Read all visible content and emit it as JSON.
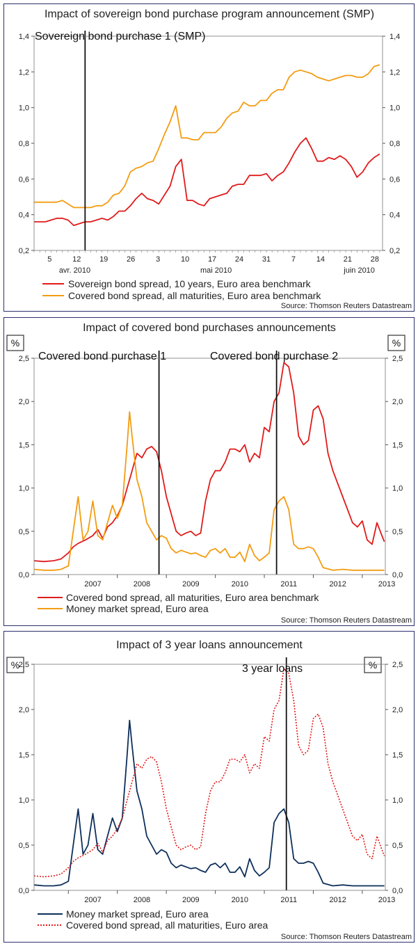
{
  "chart_data": [
    {
      "type": "line",
      "title": "Impact of sovereign bond purchase program announcement (SMP)",
      "unit_label": "",
      "x_tick_labels": [
        "5",
        "12",
        "19",
        "26",
        "3",
        "10",
        "17",
        "24",
        "31",
        "7",
        "14",
        "21",
        "28"
      ],
      "x_month_labels": [
        "avr. 2010",
        "mai 2010",
        "juin 2010"
      ],
      "ylim": [
        0.2,
        1.4
      ],
      "y_ticks": [
        "0,2",
        "0,4",
        "0,6",
        "0,8",
        "1,0",
        "1,2",
        "1,4"
      ],
      "event_line": {
        "x": 9.0,
        "label": "Sovereign bond purchase 1 (SMP)"
      },
      "xlim": [
        0,
        61.5
      ],
      "series": [
        {
          "name": "Sovereign bond spread, 10 years, Euro area benchmark",
          "color": "#e11a1a",
          "style": "solid",
          "x": [
            0,
            1,
            2,
            3,
            4,
            5,
            6,
            7,
            8,
            9,
            10,
            11,
            12,
            13,
            14,
            15,
            16,
            17,
            18,
            19,
            20,
            21,
            22,
            23,
            24,
            25,
            26,
            27,
            28,
            29,
            30,
            31,
            32,
            33,
            34,
            35,
            36,
            37,
            38,
            39,
            40,
            41,
            42,
            43,
            44,
            45,
            46,
            47,
            48,
            49,
            50,
            51,
            52,
            53,
            54,
            55,
            56,
            57,
            58,
            59,
            60,
            61
          ],
          "values": [
            0.36,
            0.36,
            0.36,
            0.37,
            0.38,
            0.38,
            0.37,
            0.34,
            0.35,
            0.36,
            0.36,
            0.37,
            0.38,
            0.37,
            0.39,
            0.42,
            0.42,
            0.45,
            0.49,
            0.52,
            0.49,
            0.48,
            0.46,
            0.51,
            0.56,
            0.67,
            0.71,
            0.48,
            0.48,
            0.46,
            0.45,
            0.49,
            0.5,
            0.51,
            0.52,
            0.56,
            0.57,
            0.57,
            0.62,
            0.62,
            0.62,
            0.63,
            0.59,
            0.62,
            0.64,
            0.69,
            0.75,
            0.8,
            0.83,
            0.77,
            0.7,
            0.7,
            0.72,
            0.71,
            0.73,
            0.71,
            0.67,
            0.61,
            0.64,
            0.69,
            0.72,
            0.74
          ]
        },
        {
          "name": "Covered bond spread, all maturities, Euro area benchmark",
          "color": "#f39c12",
          "style": "solid",
          "x": [
            0,
            1,
            2,
            3,
            4,
            5,
            6,
            7,
            8,
            9,
            10,
            11,
            12,
            13,
            14,
            15,
            16,
            17,
            18,
            19,
            20,
            21,
            22,
            23,
            24,
            25,
            26,
            27,
            28,
            29,
            30,
            31,
            32,
            33,
            34,
            35,
            36,
            37,
            38,
            39,
            40,
            41,
            42,
            43,
            44,
            45,
            46,
            47,
            48,
            49,
            50,
            51,
            52,
            53,
            54,
            55,
            56,
            57,
            58,
            59,
            60,
            61
          ],
          "values": [
            0.47,
            0.47,
            0.47,
            0.47,
            0.47,
            0.48,
            0.46,
            0.44,
            0.44,
            0.44,
            0.44,
            0.45,
            0.45,
            0.47,
            0.51,
            0.52,
            0.56,
            0.64,
            0.66,
            0.67,
            0.69,
            0.7,
            0.77,
            0.85,
            0.92,
            1.01,
            0.83,
            0.83,
            0.82,
            0.82,
            0.86,
            0.86,
            0.86,
            0.89,
            0.94,
            0.97,
            0.98,
            1.03,
            1.01,
            1.01,
            1.04,
            1.04,
            1.08,
            1.1,
            1.1,
            1.17,
            1.2,
            1.21,
            1.2,
            1.19,
            1.17,
            1.16,
            1.15,
            1.16,
            1.17,
            1.18,
            1.18,
            1.17,
            1.17,
            1.19,
            1.23,
            1.24
          ]
        }
      ],
      "source": "Source: Thomson Reuters Datastream"
    },
    {
      "type": "line",
      "title": "Impact of covered bond purchases announcements",
      "unit_label": "%",
      "x_tick_labels": [
        "2007",
        "2008",
        "2009",
        "2010",
        "2011",
        "2012",
        "2013"
      ],
      "ylim": [
        0,
        2.5
      ],
      "y_ticks": [
        "0,0",
        "0,5",
        "1,0",
        "1,5",
        "2,0",
        "2,5"
      ],
      "xlim": [
        2006.3,
        2013.47
      ],
      "event_lines": [
        {
          "x": 2008.85,
          "label": "Covered bond purchase 1"
        },
        {
          "x": 2011.25,
          "label": "Covered bond purchase 2"
        }
      ],
      "series": [
        {
          "name": "Covered bond spread, all maturities, Euro area benchmark",
          "color": "#e11a1a",
          "style": "solid",
          "x": [
            2006.3,
            2006.5,
            2006.7,
            2006.85,
            2007.0,
            2007.1,
            2007.2,
            2007.35,
            2007.5,
            2007.6,
            2007.7,
            2007.8,
            2007.9,
            2008.0,
            2008.1,
            2008.2,
            2008.3,
            2008.4,
            2008.5,
            2008.6,
            2008.7,
            2008.8,
            2008.9,
            2009.0,
            2009.1,
            2009.2,
            2009.3,
            2009.4,
            2009.5,
            2009.6,
            2009.7,
            2009.8,
            2009.9,
            2010.0,
            2010.1,
            2010.2,
            2010.3,
            2010.4,
            2010.5,
            2010.6,
            2010.7,
            2010.8,
            2010.9,
            2011.0,
            2011.1,
            2011.2,
            2011.3,
            2011.4,
            2011.5,
            2011.6,
            2011.7,
            2011.8,
            2011.9,
            2012.0,
            2012.1,
            2012.2,
            2012.3,
            2012.4,
            2012.5,
            2012.6,
            2012.7,
            2012.8,
            2012.9,
            2013.0,
            2013.1,
            2013.2,
            2013.3,
            2013.4,
            2013.45
          ],
          "values": [
            0.16,
            0.15,
            0.16,
            0.18,
            0.25,
            0.32,
            0.36,
            0.4,
            0.45,
            0.52,
            0.42,
            0.55,
            0.6,
            0.68,
            0.8,
            1.0,
            1.2,
            1.4,
            1.35,
            1.45,
            1.48,
            1.42,
            1.2,
            0.9,
            0.7,
            0.5,
            0.45,
            0.48,
            0.5,
            0.45,
            0.48,
            0.85,
            1.1,
            1.2,
            1.2,
            1.3,
            1.45,
            1.45,
            1.42,
            1.5,
            1.3,
            1.4,
            1.35,
            1.7,
            1.65,
            2.0,
            2.1,
            2.45,
            2.4,
            2.1,
            1.6,
            1.5,
            1.55,
            1.9,
            1.95,
            1.8,
            1.4,
            1.2,
            1.05,
            0.9,
            0.75,
            0.6,
            0.55,
            0.62,
            0.4,
            0.35,
            0.6,
            0.45,
            0.38
          ]
        },
        {
          "name": "Money market spread, Euro area",
          "color": "#f39c12",
          "style": "solid",
          "x": [
            2006.3,
            2006.5,
            2006.7,
            2006.85,
            2007.0,
            2007.1,
            2007.2,
            2007.3,
            2007.4,
            2007.5,
            2007.6,
            2007.7,
            2007.8,
            2007.9,
            2008.0,
            2008.1,
            2008.2,
            2008.25,
            2008.3,
            2008.4,
            2008.5,
            2008.6,
            2008.7,
            2008.8,
            2008.9,
            2009.0,
            2009.1,
            2009.2,
            2009.3,
            2009.4,
            2009.5,
            2009.6,
            2009.7,
            2009.8,
            2009.9,
            2010.0,
            2010.1,
            2010.2,
            2010.3,
            2010.4,
            2010.5,
            2010.6,
            2010.7,
            2010.8,
            2010.9,
            2011.0,
            2011.1,
            2011.2,
            2011.3,
            2011.4,
            2011.5,
            2011.6,
            2011.7,
            2011.8,
            2011.9,
            2012.0,
            2012.1,
            2012.2,
            2012.4,
            2012.6,
            2012.8,
            2013.0,
            2013.2,
            2013.45
          ],
          "values": [
            0.06,
            0.05,
            0.05,
            0.06,
            0.1,
            0.5,
            0.9,
            0.4,
            0.5,
            0.85,
            0.45,
            0.4,
            0.6,
            0.8,
            0.65,
            0.8,
            1.5,
            1.88,
            1.6,
            1.1,
            0.9,
            0.6,
            0.5,
            0.4,
            0.45,
            0.42,
            0.3,
            0.25,
            0.28,
            0.26,
            0.24,
            0.25,
            0.22,
            0.2,
            0.28,
            0.3,
            0.25,
            0.3,
            0.2,
            0.2,
            0.26,
            0.15,
            0.35,
            0.22,
            0.16,
            0.2,
            0.25,
            0.75,
            0.85,
            0.9,
            0.75,
            0.35,
            0.3,
            0.3,
            0.32,
            0.3,
            0.2,
            0.08,
            0.05,
            0.06,
            0.05,
            0.05,
            0.05,
            0.05
          ]
        }
      ],
      "source": "Source: Thomson Reuters Datastream"
    },
    {
      "type": "line",
      "title": "Impact of 3 year loans announcement",
      "unit_label": "%",
      "x_tick_labels": [
        "2007",
        "2008",
        "2009",
        "2010",
        "2011",
        "2012",
        "2013"
      ],
      "ylim": [
        0,
        2.5
      ],
      "y_ticks": [
        "0,0",
        "0,5",
        "1,0",
        "1,5",
        "2,0",
        "2,5"
      ],
      "xlim": [
        2006.3,
        2013.47
      ],
      "event_line": {
        "x": 2011.45,
        "label": "3 year loans"
      },
      "series": [
        {
          "name": "Money market spread, Euro area",
          "color": "#0d2f5a",
          "style": "solid",
          "x": [
            2006.3,
            2006.5,
            2006.7,
            2006.85,
            2007.0,
            2007.1,
            2007.2,
            2007.3,
            2007.4,
            2007.5,
            2007.6,
            2007.7,
            2007.8,
            2007.9,
            2008.0,
            2008.1,
            2008.2,
            2008.25,
            2008.3,
            2008.4,
            2008.5,
            2008.6,
            2008.7,
            2008.8,
            2008.9,
            2009.0,
            2009.1,
            2009.2,
            2009.3,
            2009.4,
            2009.5,
            2009.6,
            2009.7,
            2009.8,
            2009.9,
            2010.0,
            2010.1,
            2010.2,
            2010.3,
            2010.4,
            2010.5,
            2010.6,
            2010.7,
            2010.8,
            2010.9,
            2011.0,
            2011.1,
            2011.2,
            2011.3,
            2011.4,
            2011.5,
            2011.6,
            2011.7,
            2011.8,
            2011.9,
            2012.0,
            2012.1,
            2012.2,
            2012.4,
            2012.6,
            2012.8,
            2013.0,
            2013.2,
            2013.45
          ],
          "values": [
            0.06,
            0.05,
            0.05,
            0.06,
            0.1,
            0.5,
            0.9,
            0.4,
            0.5,
            0.85,
            0.45,
            0.4,
            0.6,
            0.8,
            0.65,
            0.8,
            1.5,
            1.88,
            1.6,
            1.1,
            0.9,
            0.6,
            0.5,
            0.4,
            0.45,
            0.42,
            0.3,
            0.25,
            0.28,
            0.26,
            0.24,
            0.25,
            0.22,
            0.2,
            0.28,
            0.3,
            0.25,
            0.3,
            0.2,
            0.2,
            0.26,
            0.15,
            0.35,
            0.22,
            0.16,
            0.2,
            0.25,
            0.75,
            0.85,
            0.9,
            0.75,
            0.35,
            0.3,
            0.3,
            0.32,
            0.3,
            0.2,
            0.08,
            0.05,
            0.06,
            0.05,
            0.05,
            0.05,
            0.05
          ]
        },
        {
          "name": "Covered bond spread, all maturities, Euro area",
          "color": "#e11a1a",
          "style": "dotted",
          "x": [
            2006.3,
            2006.5,
            2006.7,
            2006.85,
            2007.0,
            2007.1,
            2007.2,
            2007.35,
            2007.5,
            2007.6,
            2007.7,
            2007.8,
            2007.9,
            2008.0,
            2008.1,
            2008.2,
            2008.3,
            2008.4,
            2008.5,
            2008.6,
            2008.7,
            2008.8,
            2008.9,
            2009.0,
            2009.1,
            2009.2,
            2009.3,
            2009.4,
            2009.5,
            2009.6,
            2009.7,
            2009.8,
            2009.9,
            2010.0,
            2010.1,
            2010.2,
            2010.3,
            2010.4,
            2010.5,
            2010.6,
            2010.7,
            2010.8,
            2010.9,
            2011.0,
            2011.1,
            2011.2,
            2011.3,
            2011.4,
            2011.5,
            2011.6,
            2011.7,
            2011.8,
            2011.9,
            2012.0,
            2012.1,
            2012.2,
            2012.3,
            2012.4,
            2012.5,
            2012.6,
            2012.7,
            2012.8,
            2012.9,
            2013.0,
            2013.1,
            2013.2,
            2013.3,
            2013.4,
            2013.45
          ],
          "values": [
            0.16,
            0.15,
            0.16,
            0.18,
            0.25,
            0.32,
            0.36,
            0.4,
            0.45,
            0.52,
            0.42,
            0.55,
            0.6,
            0.68,
            0.8,
            1.0,
            1.2,
            1.4,
            1.35,
            1.45,
            1.48,
            1.42,
            1.2,
            0.9,
            0.7,
            0.5,
            0.45,
            0.48,
            0.5,
            0.45,
            0.48,
            0.85,
            1.1,
            1.2,
            1.2,
            1.3,
            1.45,
            1.45,
            1.42,
            1.5,
            1.3,
            1.4,
            1.35,
            1.7,
            1.65,
            2.0,
            2.1,
            2.45,
            2.4,
            2.1,
            1.6,
            1.5,
            1.55,
            1.9,
            1.95,
            1.8,
            1.4,
            1.2,
            1.05,
            0.9,
            0.75,
            0.6,
            0.55,
            0.62,
            0.4,
            0.35,
            0.6,
            0.45,
            0.38
          ]
        }
      ],
      "source": "Source: Thomson Reuters Datastream"
    }
  ]
}
